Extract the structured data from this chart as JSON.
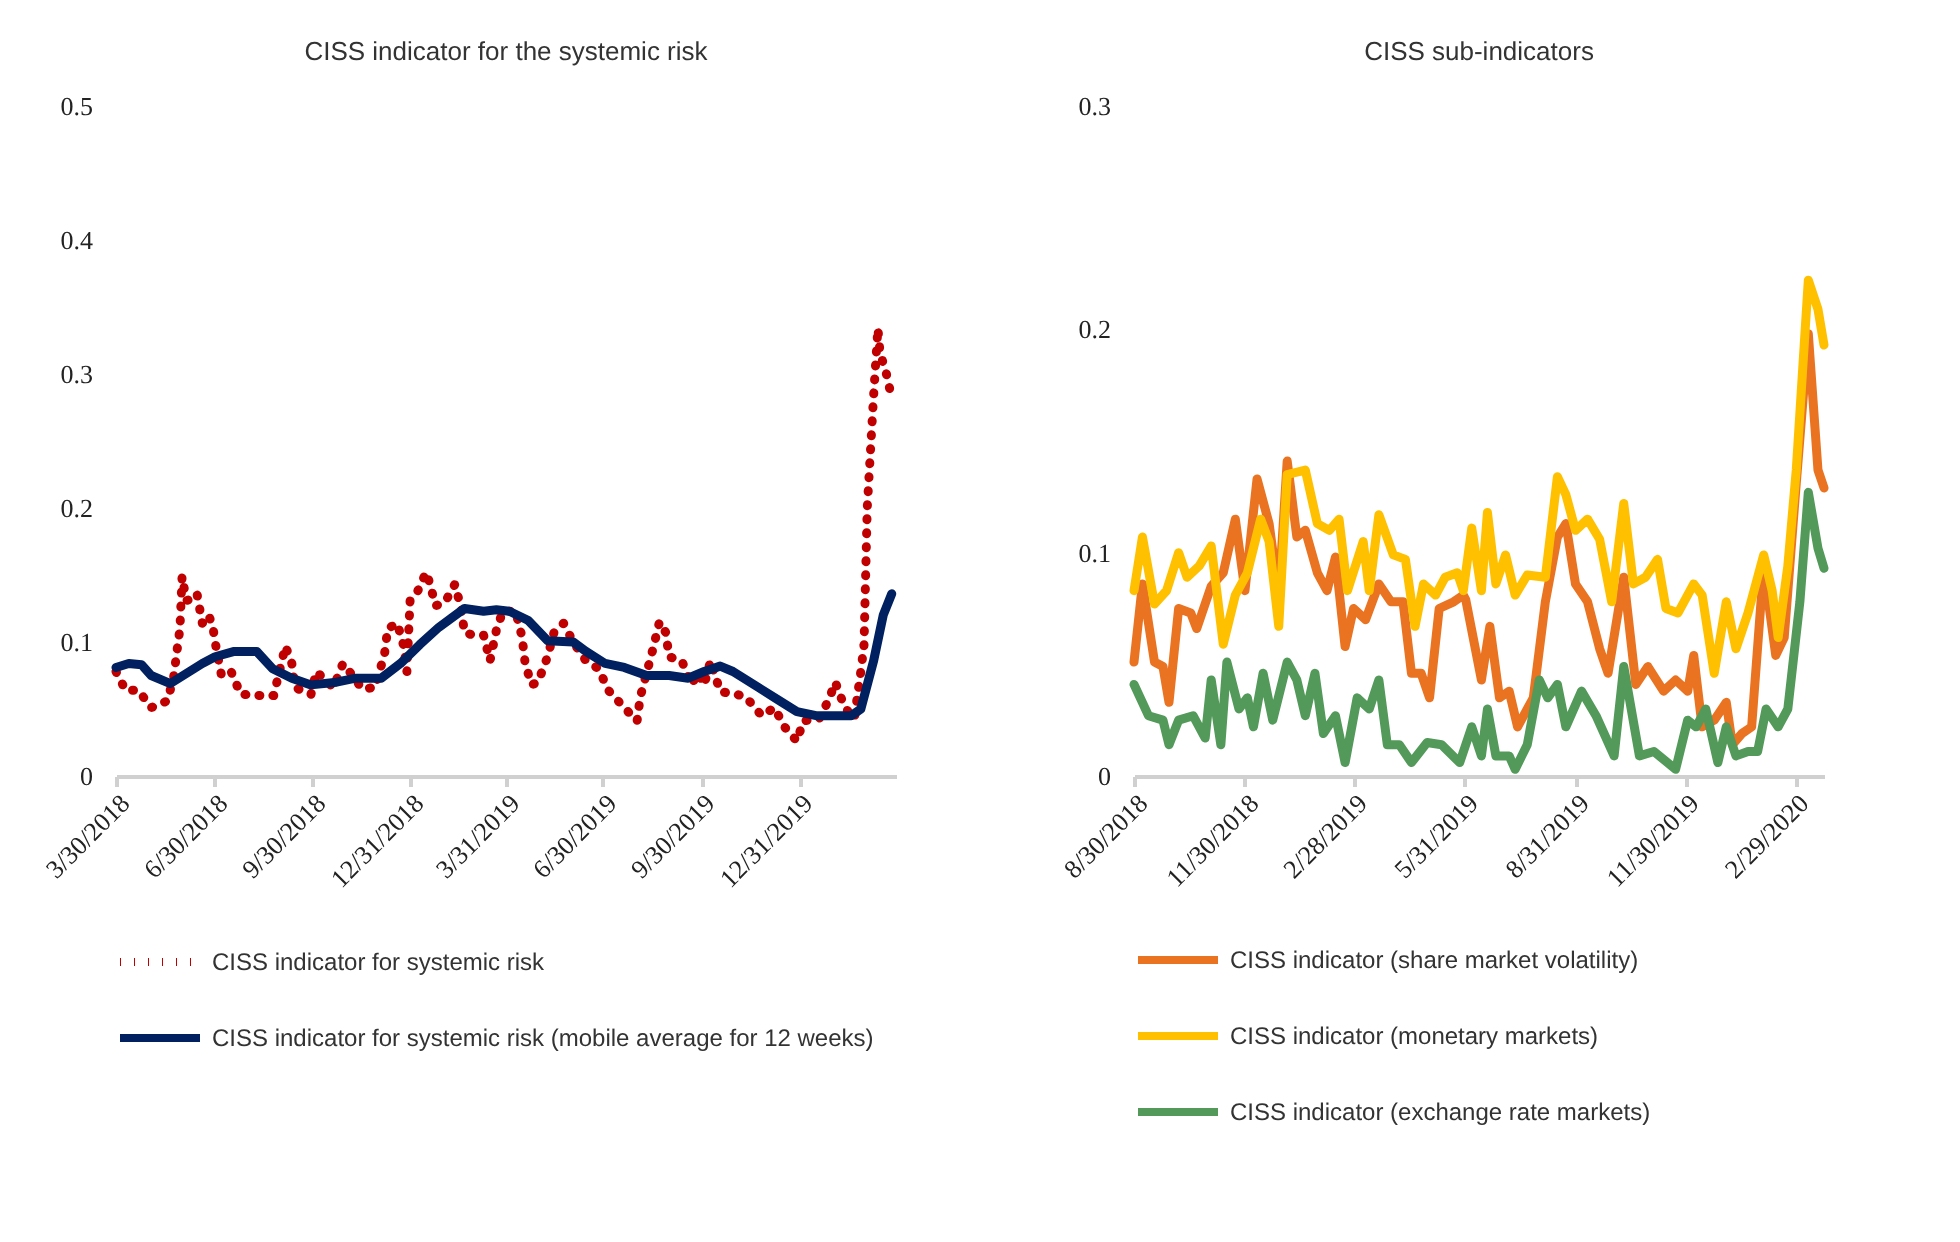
{
  "chart_data": [
    {
      "type": "line",
      "title": "CISS indicator for the systemic risk",
      "legend": "bottom",
      "marker": "none",
      "ylim": [
        0,
        0.5
      ],
      "yticks": [
        0,
        0.1,
        0.2,
        0.3,
        0.4,
        0.5
      ],
      "xlim": [
        "2018-03-30",
        "2020-03-31"
      ],
      "xticks": [
        {
          "value": "2018-03-30",
          "label": "3/30/2018"
        },
        {
          "value": "2018-06-30",
          "label": "6/30/2018"
        },
        {
          "value": "2018-09-30",
          "label": "9/30/2018"
        },
        {
          "value": "2018-12-31",
          "label": "12/31/2018"
        },
        {
          "value": "2019-03-31",
          "label": "3/31/2019"
        },
        {
          "value": "2019-06-30",
          "label": "6/30/2019"
        },
        {
          "value": "2019-09-30",
          "label": "9/30/2019"
        },
        {
          "value": "2019-12-31",
          "label": "12/31/2019"
        }
      ],
      "series": [
        {
          "name": "CISS indicator for systemic risk",
          "color": "#c00000",
          "line_style": "dotted",
          "x": [
            "2018-03-30",
            "2018-04-08",
            "2018-04-20",
            "2018-05-02",
            "2018-05-17",
            "2018-05-23",
            "2018-05-26",
            "2018-05-29",
            "2018-05-31",
            "2018-06-04",
            "2018-06-10",
            "2018-06-14",
            "2018-06-19",
            "2018-06-25",
            "2018-06-29",
            "2018-07-01",
            "2018-07-07",
            "2018-07-16",
            "2018-07-25",
            "2018-08-13",
            "2018-08-25",
            "2018-09-05",
            "2018-09-11",
            "2018-09-14",
            "2018-09-29",
            "2018-10-04",
            "2018-10-20",
            "2018-10-29",
            "2018-11-07",
            "2018-11-16",
            "2018-11-28",
            "2018-12-07",
            "2018-12-10",
            "2018-12-19",
            "2018-12-25",
            "2018-12-28",
            "2018-12-31",
            "2019-01-06",
            "2019-01-15",
            "2019-01-18",
            "2019-01-24",
            "2019-02-02",
            "2019-02-11",
            "2019-02-17",
            "2019-02-20",
            "2019-03-01",
            "2019-03-10",
            "2019-03-16",
            "2019-03-22",
            "2019-03-28",
            "2019-04-09",
            "2019-04-15",
            "2019-04-18",
            "2019-04-24",
            "2019-04-30",
            "2019-05-09",
            "2019-05-15",
            "2019-05-24",
            "2019-06-02",
            "2019-06-14",
            "2019-06-26",
            "2019-07-05",
            "2019-07-20",
            "2019-08-01",
            "2019-08-04",
            "2019-08-16",
            "2019-08-22",
            "2019-08-28",
            "2019-08-31",
            "2019-09-12",
            "2019-09-21",
            "2019-09-27",
            "2019-10-03",
            "2019-10-09",
            "2019-10-18",
            "2019-11-02",
            "2019-11-11",
            "2019-11-26",
            "2019-12-08",
            "2019-12-17",
            "2019-12-29",
            "2020-01-04",
            "2020-01-19",
            "2020-01-28",
            "2020-02-03",
            "2020-02-12",
            "2020-02-21",
            "2020-02-24",
            "2020-02-27",
            "2020-03-01",
            "2020-03-04",
            "2020-03-10",
            "2020-03-14",
            "2020-03-16",
            "2020-03-22",
            "2020-03-27"
          ],
          "values": [
            0.078,
            0.064,
            0.064,
            0.051,
            0.056,
            0.073,
            0.092,
            0.11,
            0.149,
            0.131,
            0.132,
            0.136,
            0.114,
            0.12,
            0.111,
            0.1,
            0.075,
            0.078,
            0.061,
            0.06,
            0.06,
            0.097,
            0.084,
            0.066,
            0.061,
            0.078,
            0.066,
            0.084,
            0.075,
            0.065,
            0.066,
            0.091,
            0.11,
            0.114,
            0.097,
            0.078,
            0.131,
            0.136,
            0.152,
            0.145,
            0.127,
            0.13,
            0.143,
            0.125,
            0.107,
            0.105,
            0.105,
            0.086,
            0.109,
            0.123,
            0.123,
            0.104,
            0.084,
            0.068,
            0.07,
            0.089,
            0.107,
            0.114,
            0.1,
            0.086,
            0.08,
            0.064,
            0.051,
            0.041,
            0.059,
            0.095,
            0.115,
            0.107,
            0.089,
            0.086,
            0.068,
            0.077,
            0.068,
            0.086,
            0.063,
            0.061,
            0.059,
            0.045,
            0.051,
            0.037,
            0.026,
            0.041,
            0.043,
            0.057,
            0.07,
            0.051,
            0.043,
            0.061,
            0.078,
            0.098,
            0.2,
            0.284,
            0.334,
            0.316,
            0.3,
            0.282
          ]
        },
        {
          "name": "CISS indicator for systemic risk (mobile average for 12 weeks)",
          "color": "#002060",
          "line_style": "solid",
          "x": [
            "2018-03-30",
            "2018-04-11",
            "2018-04-23",
            "2018-05-02",
            "2018-05-20",
            "2018-06-01",
            "2018-06-19",
            "2018-07-01",
            "2018-07-19",
            "2018-08-09",
            "2018-08-24",
            "2018-09-11",
            "2018-09-29",
            "2018-10-23",
            "2018-11-10",
            "2018-12-04",
            "2018-12-22",
            "2019-01-09",
            "2019-01-27",
            "2019-02-20",
            "2019-03-10",
            "2019-03-22",
            "2019-04-03",
            "2019-04-21",
            "2019-05-09",
            "2019-06-02",
            "2019-06-14",
            "2019-07-02",
            "2019-07-20",
            "2019-08-10",
            "2019-08-31",
            "2019-09-18",
            "2019-10-03",
            "2019-10-18",
            "2019-10-30",
            "2019-11-23",
            "2019-12-11",
            "2019-12-29",
            "2020-01-16",
            "2020-02-03",
            "2020-02-18",
            "2020-02-27",
            "2020-03-10",
            "2020-03-19",
            "2020-03-27"
          ],
          "values": [
            0.081,
            0.084,
            0.083,
            0.075,
            0.069,
            0.075,
            0.084,
            0.089,
            0.093,
            0.093,
            0.08,
            0.073,
            0.068,
            0.07,
            0.073,
            0.073,
            0.084,
            0.098,
            0.111,
            0.125,
            0.123,
            0.124,
            0.123,
            0.116,
            0.101,
            0.1,
            0.093,
            0.084,
            0.081,
            0.075,
            0.075,
            0.073,
            0.078,
            0.082,
            0.078,
            0.066,
            0.057,
            0.048,
            0.045,
            0.045,
            0.045,
            0.05,
            0.086,
            0.12,
            0.136
          ]
        }
      ]
    },
    {
      "type": "line",
      "title": "CISS sub-indicators",
      "legend": "bottom",
      "marker": "none",
      "line_style": "solid",
      "ylim": [
        0,
        0.3
      ],
      "yticks": [
        0,
        0.1,
        0.2,
        0.3
      ],
      "xlim": [
        "2018-08-30",
        "2020-03-24"
      ],
      "xticks": [
        {
          "value": "2018-08-30",
          "label": "8/30/2018"
        },
        {
          "value": "2018-11-30",
          "label": "11/30/2018"
        },
        {
          "value": "2019-02-28",
          "label": "2/28/2019"
        },
        {
          "value": "2019-05-31",
          "label": "5/31/2019"
        },
        {
          "value": "2019-08-31",
          "label": "8/31/2019"
        },
        {
          "value": "2019-11-30",
          "label": "11/30/2019"
        },
        {
          "value": "2020-02-29",
          "label": "2/29/2020"
        }
      ],
      "series": [
        {
          "name": "CISS indicator (share market volatility)",
          "color": "#e97321",
          "x": [
            "2018-08-30",
            "2018-09-06",
            "2018-09-16",
            "2018-09-23",
            "2018-09-28",
            "2018-10-06",
            "2018-10-16",
            "2018-10-21",
            "2018-11-02",
            "2018-11-12",
            "2018-11-22",
            "2018-11-30",
            "2018-12-10",
            "2018-12-20",
            "2018-12-28",
            "2019-01-04",
            "2019-01-12",
            "2019-01-19",
            "2019-01-29",
            "2019-02-06",
            "2019-02-13",
            "2019-02-21",
            "2019-02-28",
            "2019-03-10",
            "2019-03-21",
            "2019-03-31",
            "2019-04-10",
            "2019-04-17",
            "2019-04-25",
            "2019-05-02",
            "2019-05-10",
            "2019-05-22",
            "2019-05-30",
            "2019-06-01",
            "2019-06-14",
            "2019-06-21",
            "2019-06-29",
            "2019-07-07",
            "2019-07-14",
            "2019-07-27",
            "2019-08-06",
            "2019-08-16",
            "2019-08-23",
            "2019-08-31",
            "2019-09-10",
            "2019-09-20",
            "2019-09-27",
            "2019-10-10",
            "2019-10-20",
            "2019-10-30",
            "2019-11-12",
            "2019-11-22",
            "2019-12-02",
            "2019-12-07",
            "2019-12-14",
            "2019-12-24",
            "2020-01-03",
            "2020-01-08",
            "2020-01-16",
            "2020-01-24",
            "2020-02-03",
            "2020-02-13",
            "2020-02-20",
            "2020-03-01",
            "2020-03-11",
            "2020-03-19",
            "2020-03-24"
          ],
          "values": [
            0.051,
            0.086,
            0.051,
            0.049,
            0.033,
            0.075,
            0.073,
            0.066,
            0.085,
            0.091,
            0.115,
            0.083,
            0.133,
            0.113,
            0.081,
            0.141,
            0.107,
            0.11,
            0.091,
            0.083,
            0.098,
            0.058,
            0.075,
            0.07,
            0.086,
            0.078,
            0.078,
            0.046,
            0.046,
            0.035,
            0.075,
            0.078,
            0.081,
            0.079,
            0.043,
            0.067,
            0.035,
            0.038,
            0.022,
            0.035,
            0.078,
            0.107,
            0.113,
            0.086,
            0.078,
            0.057,
            0.046,
            0.089,
            0.041,
            0.049,
            0.038,
            0.043,
            0.038,
            0.054,
            0.022,
            0.025,
            0.033,
            0.014,
            0.019,
            0.022,
            0.094,
            0.054,
            0.062,
            0.131,
            0.198,
            0.137,
            0.129
          ]
        },
        {
          "name": "CISS indicator (monetary markets)",
          "color": "#ffc000",
          "x": [
            "2018-08-30",
            "2018-09-06",
            "2018-09-16",
            "2018-09-26",
            "2018-10-06",
            "2018-10-13",
            "2018-10-23",
            "2018-11-02",
            "2018-11-12",
            "2018-11-22",
            "2018-12-02",
            "2018-12-13",
            "2018-12-20",
            "2018-12-28",
            "2019-01-04",
            "2019-01-19",
            "2019-01-29",
            "2019-02-08",
            "2019-02-16",
            "2019-02-23",
            "2019-03-08",
            "2019-03-13",
            "2019-03-21",
            "2019-04-02",
            "2019-04-12",
            "2019-04-20",
            "2019-04-27",
            "2019-05-07",
            "2019-05-15",
            "2019-05-25",
            "2019-05-30",
            "2019-06-06",
            "2019-06-14",
            "2019-06-19",
            "2019-06-26",
            "2019-07-04",
            "2019-07-12",
            "2019-07-22",
            "2019-08-06",
            "2019-08-16",
            "2019-08-23",
            "2019-08-31",
            "2019-09-10",
            "2019-09-20",
            "2019-09-30",
            "2019-10-10",
            "2019-10-18",
            "2019-10-28",
            "2019-11-07",
            "2019-11-14",
            "2019-11-24",
            "2019-12-07",
            "2019-12-14",
            "2019-12-24",
            "2020-01-03",
            "2020-01-11",
            "2020-01-21",
            "2020-02-03",
            "2020-02-10",
            "2020-02-15",
            "2020-02-23",
            "2020-03-01",
            "2020-03-11",
            "2020-03-19",
            "2020-03-24"
          ],
          "values": [
            0.083,
            0.107,
            0.077,
            0.083,
            0.1,
            0.089,
            0.094,
            0.103,
            0.059,
            0.081,
            0.091,
            0.115,
            0.105,
            0.067,
            0.135,
            0.137,
            0.113,
            0.11,
            0.115,
            0.083,
            0.105,
            0.083,
            0.117,
            0.099,
            0.097,
            0.067,
            0.086,
            0.081,
            0.089,
            0.091,
            0.083,
            0.111,
            0.083,
            0.118,
            0.086,
            0.099,
            0.081,
            0.09,
            0.089,
            0.134,
            0.126,
            0.11,
            0.115,
            0.106,
            0.078,
            0.122,
            0.086,
            0.089,
            0.097,
            0.075,
            0.073,
            0.086,
            0.081,
            0.046,
            0.078,
            0.057,
            0.073,
            0.099,
            0.083,
            0.062,
            0.094,
            0.137,
            0.222,
            0.209,
            0.193
          ]
        },
        {
          "name": "CISS indicator (exchange rate markets)",
          "color": "#52995a",
          "x": [
            "2018-08-30",
            "2018-09-11",
            "2018-09-23",
            "2018-09-28",
            "2018-10-06",
            "2018-10-18",
            "2018-10-28",
            "2018-11-02",
            "2018-11-10",
            "2018-11-15",
            "2018-11-25",
            "2018-12-02",
            "2018-12-07",
            "2018-12-15",
            "2018-12-23",
            "2019-01-04",
            "2019-01-12",
            "2019-01-19",
            "2019-01-27",
            "2019-02-03",
            "2019-02-13",
            "2019-02-21",
            "2019-03-03",
            "2019-03-13",
            "2019-03-21",
            "2019-03-28",
            "2019-04-07",
            "2019-04-17",
            "2019-04-30",
            "2019-05-12",
            "2019-05-27",
            "2019-06-06",
            "2019-06-14",
            "2019-06-19",
            "2019-06-26",
            "2019-07-07",
            "2019-07-12",
            "2019-07-22",
            "2019-08-01",
            "2019-08-08",
            "2019-08-16",
            "2019-08-23",
            "2019-09-05",
            "2019-09-17",
            "2019-10-02",
            "2019-10-10",
            "2019-10-23",
            "2019-11-04",
            "2019-11-22",
            "2019-12-02",
            "2019-12-09",
            "2019-12-17",
            "2019-12-27",
            "2020-01-03",
            "2020-01-11",
            "2020-01-21",
            "2020-01-29",
            "2020-02-05",
            "2020-02-15",
            "2020-02-23",
            "2020-03-04",
            "2020-03-11",
            "2020-03-19",
            "2020-03-24"
          ],
          "values": [
            0.041,
            0.027,
            0.025,
            0.014,
            0.025,
            0.027,
            0.017,
            0.043,
            0.014,
            0.051,
            0.03,
            0.035,
            0.022,
            0.046,
            0.025,
            0.051,
            0.043,
            0.027,
            0.046,
            0.019,
            0.027,
            0.006,
            0.035,
            0.03,
            0.043,
            0.014,
            0.014,
            0.006,
            0.015,
            0.014,
            0.006,
            0.022,
            0.009,
            0.03,
            0.009,
            0.009,
            0.003,
            0.014,
            0.043,
            0.035,
            0.041,
            0.022,
            0.038,
            0.027,
            0.009,
            0.049,
            0.009,
            0.011,
            0.003,
            0.025,
            0.022,
            0.03,
            0.006,
            0.022,
            0.009,
            0.011,
            0.011,
            0.03,
            0.022,
            0.03,
            0.078,
            0.127,
            0.102,
            0.093
          ]
        }
      ]
    }
  ]
}
